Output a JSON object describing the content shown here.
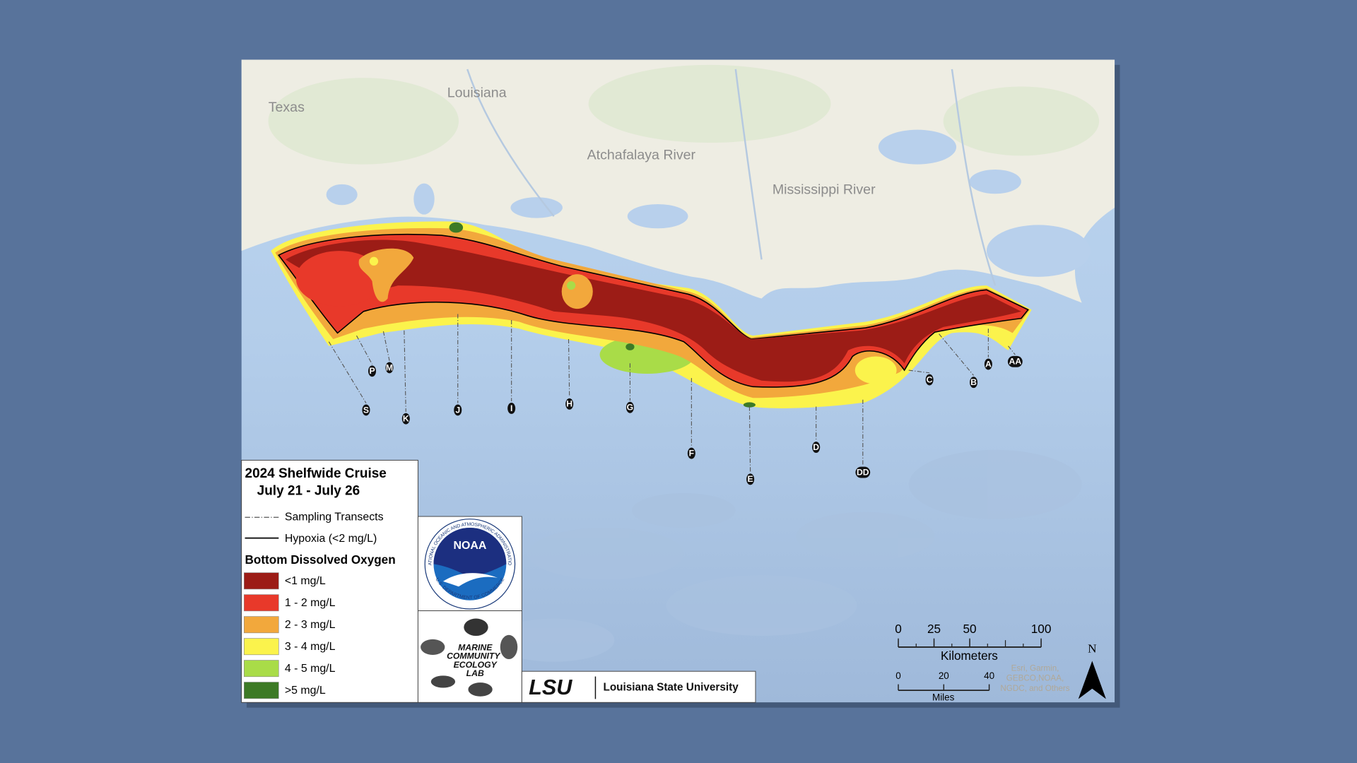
{
  "map": {
    "place_labels": [
      "Texas",
      "Louisiana",
      "Atchafalaya River",
      "Mississippi River"
    ],
    "transects": [
      "S",
      "P",
      "M",
      "K",
      "J",
      "I",
      "H",
      "G",
      "F",
      "E",
      "D",
      "DD",
      "C",
      "B",
      "A",
      "AA"
    ]
  },
  "legend": {
    "title": "2024 Shelfwide Cruise",
    "subtitle": "July 21 - July 26",
    "lines": [
      "Sampling Transects",
      "Hypoxia (<2 mg/L)"
    ],
    "oxygen_title": "Bottom Dissolved Oxygen",
    "classes": [
      {
        "label": "<1 mg/L",
        "color": "#9c1c16"
      },
      {
        "label": "1 - 2 mg/L",
        "color": "#e8392a"
      },
      {
        "label": "2 - 3 mg/L",
        "color": "#f2a83c"
      },
      {
        "label": "3 - 4 mg/L",
        "color": "#fbf34c"
      },
      {
        "label": "4 - 5 mg/L",
        "color": "#a9dc48"
      },
      {
        "label": ">5 mg/L",
        "color": "#3d7a26"
      }
    ]
  },
  "logos": {
    "noaa": "NOAA",
    "noaa_ring": "NATIONAL OCEANIC AND ATMOSPHERIC ADMINISTRATION",
    "noaa_dept": "U.S. DEPARTMENT OF COMMERCE",
    "lab": [
      "MARINE",
      "COMMUNITY",
      "ECOLOGY",
      "LAB"
    ],
    "lsu": "LSU",
    "lsu_name": "Louisiana State University"
  },
  "scale": {
    "km_ticks": [
      0,
      25,
      50,
      100
    ],
    "km_label": "Kilometers",
    "mi_ticks": [
      0,
      20,
      40
    ],
    "mi_label": "Miles"
  },
  "credits": [
    "Esri, Garmin,",
    "GEBCO,NOAA,",
    "NGDC, and Others"
  ],
  "north": "N"
}
